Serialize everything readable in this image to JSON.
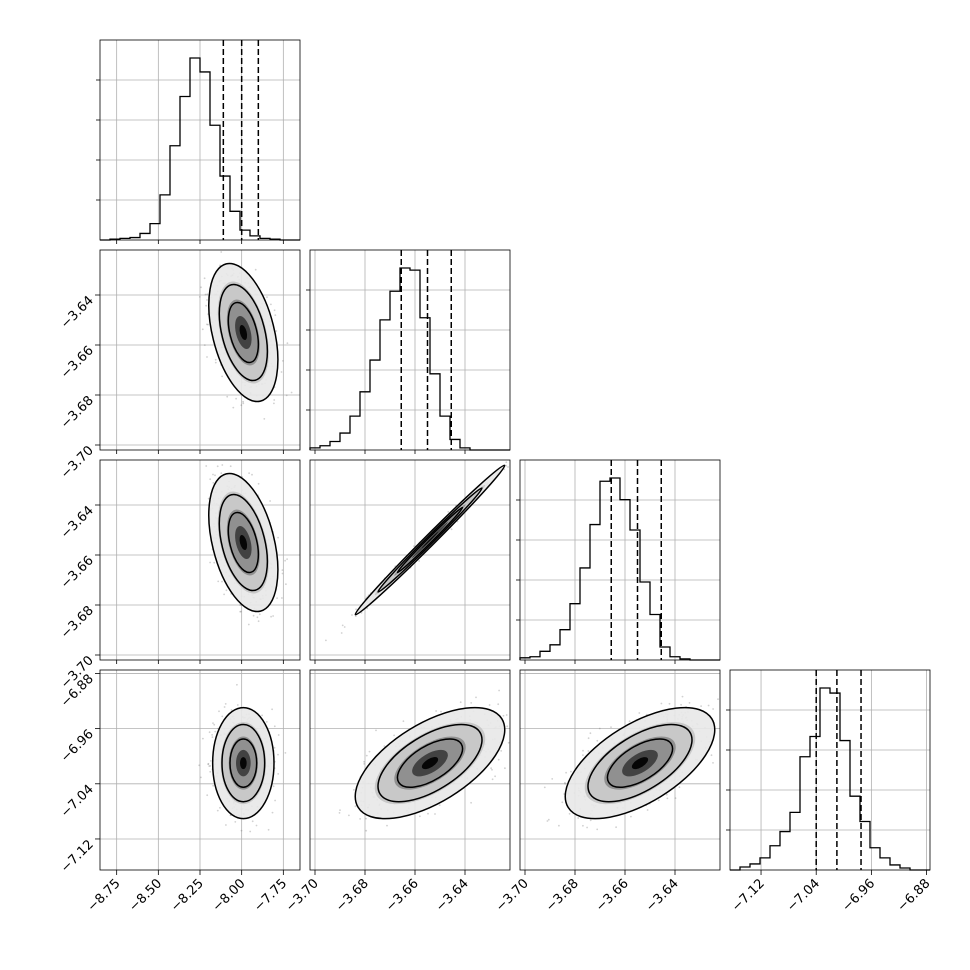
{
  "chart_data": {
    "type": "corner",
    "n_params": 4,
    "grid": true,
    "parameters": [
      {
        "index": 0,
        "range": [
          -8.85,
          -7.65
        ],
        "quantiles": [
          -8.11,
          -8.0,
          -7.9
        ],
        "ticks": [
          -8.75,
          -8.5,
          -8.25,
          -8.0,
          -7.75
        ],
        "tick_labels": [
          "−8.75",
          "−8.50",
          "−8.25",
          "−8.00",
          "−7.75"
        ]
      },
      {
        "index": 1,
        "range": [
          -3.702,
          -3.622
        ],
        "quantiles": [
          -3.6655,
          -3.655,
          -3.6455
        ],
        "ticks": [
          -3.7,
          -3.68,
          -3.66,
          -3.64
        ],
        "tick_labels": [
          "−3.70",
          "−3.68",
          "−3.66",
          "−3.64"
        ]
      },
      {
        "index": 2,
        "range": [
          -3.702,
          -3.622
        ],
        "quantiles": [
          -3.6655,
          -3.655,
          -3.6455
        ],
        "ticks": [
          -3.7,
          -3.68,
          -3.66,
          -3.64
        ],
        "tick_labels": [
          "−3.70",
          "−3.68",
          "−3.66",
          "−3.64"
        ]
      },
      {
        "index": 3,
        "range": [
          -7.165,
          -6.875
        ],
        "quantiles": [
          -7.04,
          -7.01,
          -6.975
        ],
        "ticks": [
          -7.12,
          -7.04,
          -6.96,
          -6.88
        ],
        "tick_labels": [
          "−7.12",
          "−7.04",
          "−6.96",
          "−6.88"
        ]
      }
    ],
    "histograms": [
      {
        "param": 0,
        "bins": 20,
        "counts": [
          0,
          1,
          2,
          3,
          8,
          20,
          55,
          115,
          175,
          222,
          205,
          140,
          78,
          35,
          12,
          5,
          2,
          1,
          0,
          0
        ]
      },
      {
        "param": 1,
        "bins": 20,
        "counts": [
          2,
          4,
          8,
          16,
          32,
          55,
          85,
          123,
          150,
          172,
          170,
          125,
          72,
          32,
          10,
          2,
          0,
          0,
          0,
          0
        ]
      },
      {
        "param": 2,
        "bins": 20,
        "counts": [
          2,
          3,
          8,
          14,
          28,
          52,
          85,
          125,
          165,
          168,
          148,
          120,
          72,
          42,
          12,
          3,
          1,
          0,
          0,
          0
        ]
      },
      {
        "param": 3,
        "bins": 20,
        "counts": [
          0,
          3,
          6,
          12,
          24,
          38,
          57,
          112,
          132,
          180,
          175,
          128,
          73,
          48,
          22,
          12,
          5,
          2,
          0,
          0
        ]
      }
    ],
    "pairs": [
      {
        "x": 0,
        "y": 1,
        "mean": [
          -7.99,
          -3.655
        ],
        "sd": [
          0.09,
          0.012
        ],
        "corr": -0.4
      },
      {
        "x": 0,
        "y": 2,
        "mean": [
          -7.99,
          -3.655
        ],
        "sd": [
          0.09,
          0.012
        ],
        "corr": -0.4
      },
      {
        "x": 1,
        "y": 2,
        "mean": [
          -3.654,
          -3.654
        ],
        "sd": [
          0.013,
          0.013
        ],
        "corr": 0.995
      },
      {
        "x": 0,
        "y": 3,
        "mean": [
          -7.99,
          -7.01
        ],
        "sd": [
          0.08,
          0.035
        ],
        "corr": 0.0
      },
      {
        "x": 1,
        "y": 3,
        "mean": [
          -3.654,
          -7.01
        ],
        "sd": [
          0.013,
          0.035
        ],
        "corr": 0.6
      },
      {
        "x": 2,
        "y": 3,
        "mean": [
          -3.654,
          -7.01
        ],
        "sd": [
          0.013,
          0.035
        ],
        "corr": 0.6
      }
    ]
  }
}
